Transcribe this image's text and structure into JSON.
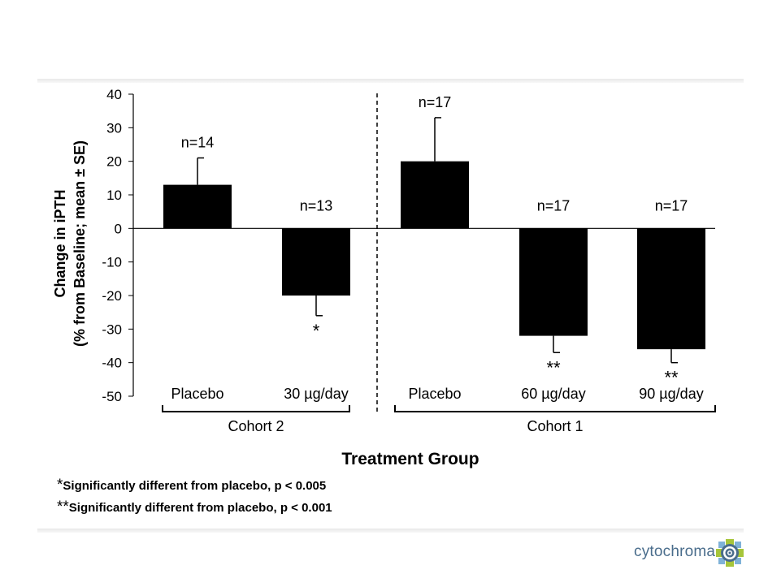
{
  "chart_data": {
    "type": "bar",
    "ylabel_line1": "Change in iPTH",
    "ylabel_line2": "(% from Baseline; mean ± SE)",
    "xlabel": "Treatment Group",
    "ylim": [
      -50,
      40
    ],
    "yticks": [
      "40",
      "30",
      "20",
      "10",
      "0",
      "-10",
      "-20",
      "-30",
      "-40",
      "-50"
    ],
    "categories": [
      "Placebo",
      "30 µg/day",
      "Placebo",
      "60 µg/day",
      "90 µg/day"
    ],
    "values": [
      13,
      -20,
      20,
      -32,
      -36
    ],
    "error": [
      8,
      6,
      13,
      5,
      4
    ],
    "n_labels": [
      "n=14",
      "n=13",
      "n=17",
      "n=17",
      "n=17"
    ],
    "significance": [
      "",
      "*",
      "",
      "**",
      "**"
    ],
    "groups": [
      {
        "label": "Cohort 2",
        "categories": [
          0,
          1
        ]
      },
      {
        "label": "Cohort 1",
        "categories": [
          2,
          3,
          4
        ]
      }
    ],
    "bar_color": "#000000",
    "grid": false
  },
  "footnotes": [
    {
      "mark": "*",
      "text": "Significantly different from placebo, p < 0.005"
    },
    {
      "mark": "**",
      "text": "Significantly different from placebo, p < 0.001"
    }
  ],
  "logo": {
    "text": "cytochroma",
    "color": "#4a6d8c",
    "icon": "gear-target-icon"
  }
}
